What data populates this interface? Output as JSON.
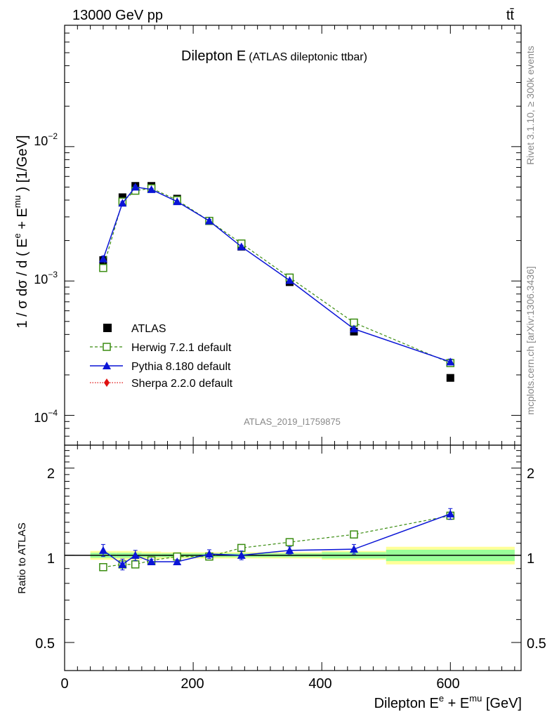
{
  "header": {
    "energy_label": "13000 GeV pp",
    "process_label": "tt̄"
  },
  "side_labels": {
    "rivet": "Rivet 3.1.10, ≥ 300k events",
    "mcplots": "mcplots.cern.ch [arXiv:1306.3436]"
  },
  "chart_data": [
    {
      "type": "scatter",
      "panel": "main",
      "title": "Dilepton E",
      "subtitle": "(ATLAS dileptonic ttbar)",
      "watermark": "ATLAS_2019_I1759875",
      "ylabel": "1 / σ dσ / d ( E^e + E^mu ) [1/GeV]",
      "ylabel_parts": {
        "pre": "1 / σ  dσ / d ( E",
        "sup1": "e",
        "mid": " + E",
        "sup2": "mu",
        "post": " ) [1/GeV]"
      },
      "yscale": "log",
      "xlim": [
        0,
        710
      ],
      "ylim": [
        6e-05,
        0.08
      ],
      "y_tick_labels": [
        {
          "value": 0.01,
          "base": "10",
          "exp": "−2"
        },
        {
          "value": 0.001,
          "base": "10",
          "exp": "−3"
        },
        {
          "value": 0.0001,
          "base": "10",
          "exp": "−4"
        }
      ],
      "legend_position": "middle-left",
      "series": [
        {
          "name": "ATLAS",
          "color": "#000000",
          "marker": "square-filled",
          "x": [
            60,
            90,
            110,
            135,
            175,
            225,
            275,
            350,
            450,
            600
          ],
          "y": [
            0.00143,
            0.0042,
            0.0051,
            0.0051,
            0.0041,
            0.0028,
            0.0018,
            0.00098,
            0.00042,
            0.00019
          ]
        },
        {
          "name": "Herwig 7.2.1 default",
          "color": "#3a8c10",
          "marker": "square-open",
          "line": "dashed",
          "x": [
            60,
            90,
            110,
            135,
            175,
            225,
            275,
            350,
            450,
            600
          ],
          "y": [
            0.00125,
            0.0039,
            0.0047,
            0.0049,
            0.004,
            0.0028,
            0.0019,
            0.00106,
            0.00049,
            0.000245
          ]
        },
        {
          "name": "Pythia 8.180 default",
          "color": "#0a14d6",
          "marker": "triangle-filled",
          "line": "solid",
          "x": [
            60,
            90,
            110,
            135,
            175,
            225,
            275,
            350,
            450,
            600
          ],
          "y": [
            0.00146,
            0.0038,
            0.005,
            0.0048,
            0.0039,
            0.0028,
            0.0018,
            0.00101,
            0.00044,
            0.00025
          ],
          "yerr_rel": [
            0.05,
            0.025,
            0.03,
            0.015,
            0.012,
            0.025,
            0.025,
            0.015,
            0.03,
            0.05
          ]
        },
        {
          "name": "Sherpa 2.2.0 default",
          "color": "#e01010",
          "marker": "diamond-filled",
          "line": "dotted",
          "x": [],
          "y": []
        }
      ]
    },
    {
      "type": "scatter",
      "panel": "ratio",
      "ylabel": "Ratio to ATLAS",
      "xlabel": "Dilepton E^e + E^mu [GeV]",
      "xlabel_parts": {
        "pre": "Dilepton E",
        "sup1": "e",
        "mid": " + E",
        "sup2": "mu",
        "post": " [GeV]"
      },
      "yscale": "log",
      "xlim": [
        0,
        710
      ],
      "ylim": [
        0.4,
        2.4
      ],
      "x_tick_labels": [
        "0",
        "200",
        "400",
        "600"
      ],
      "y_tick_labels": [
        "2",
        "1",
        "0.5"
      ],
      "band_bins": [
        {
          "xlow": 40,
          "xhigh": 80,
          "inner": 0.02,
          "outer": 0.035
        },
        {
          "xlow": 80,
          "xhigh": 100,
          "inner": 0.02,
          "outer": 0.035
        },
        {
          "xlow": 100,
          "xhigh": 120,
          "inner": 0.02,
          "outer": 0.035
        },
        {
          "xlow": 120,
          "xhigh": 150,
          "inner": 0.015,
          "outer": 0.03
        },
        {
          "xlow": 150,
          "xhigh": 200,
          "inner": 0.015,
          "outer": 0.025
        },
        {
          "xlow": 200,
          "xhigh": 250,
          "inner": 0.015,
          "outer": 0.025
        },
        {
          "xlow": 250,
          "xhigh": 300,
          "inner": 0.015,
          "outer": 0.025
        },
        {
          "xlow": 300,
          "xhigh": 400,
          "inner": 0.015,
          "outer": 0.025
        },
        {
          "xlow": 400,
          "xhigh": 500,
          "inner": 0.025,
          "outer": 0.035
        },
        {
          "xlow": 500,
          "xhigh": 700,
          "inner": 0.045,
          "outer": 0.07
        }
      ],
      "series": [
        {
          "name": "Herwig 7.2.1 default",
          "color": "#3a8c10",
          "marker": "square-open",
          "line": "dashed",
          "x": [
            60,
            90,
            110,
            135,
            175,
            225,
            275,
            350,
            450,
            600
          ],
          "y": [
            0.91,
            0.93,
            0.93,
            0.96,
            0.99,
            0.99,
            1.06,
            1.11,
            1.18,
            1.37
          ]
        },
        {
          "name": "Pythia 8.180 default",
          "color": "#0a14d6",
          "marker": "triangle-filled",
          "line": "solid",
          "x": [
            60,
            90,
            110,
            135,
            175,
            225,
            275,
            350,
            450,
            600
          ],
          "y": [
            1.04,
            0.93,
            1.0,
            0.95,
            0.95,
            1.01,
            1.0,
            1.04,
            1.05,
            1.39
          ],
          "yerr": [
            0.05,
            0.04,
            0.04,
            0.02,
            0.015,
            0.035,
            0.035,
            0.03,
            0.04,
            0.06
          ]
        }
      ]
    }
  ]
}
